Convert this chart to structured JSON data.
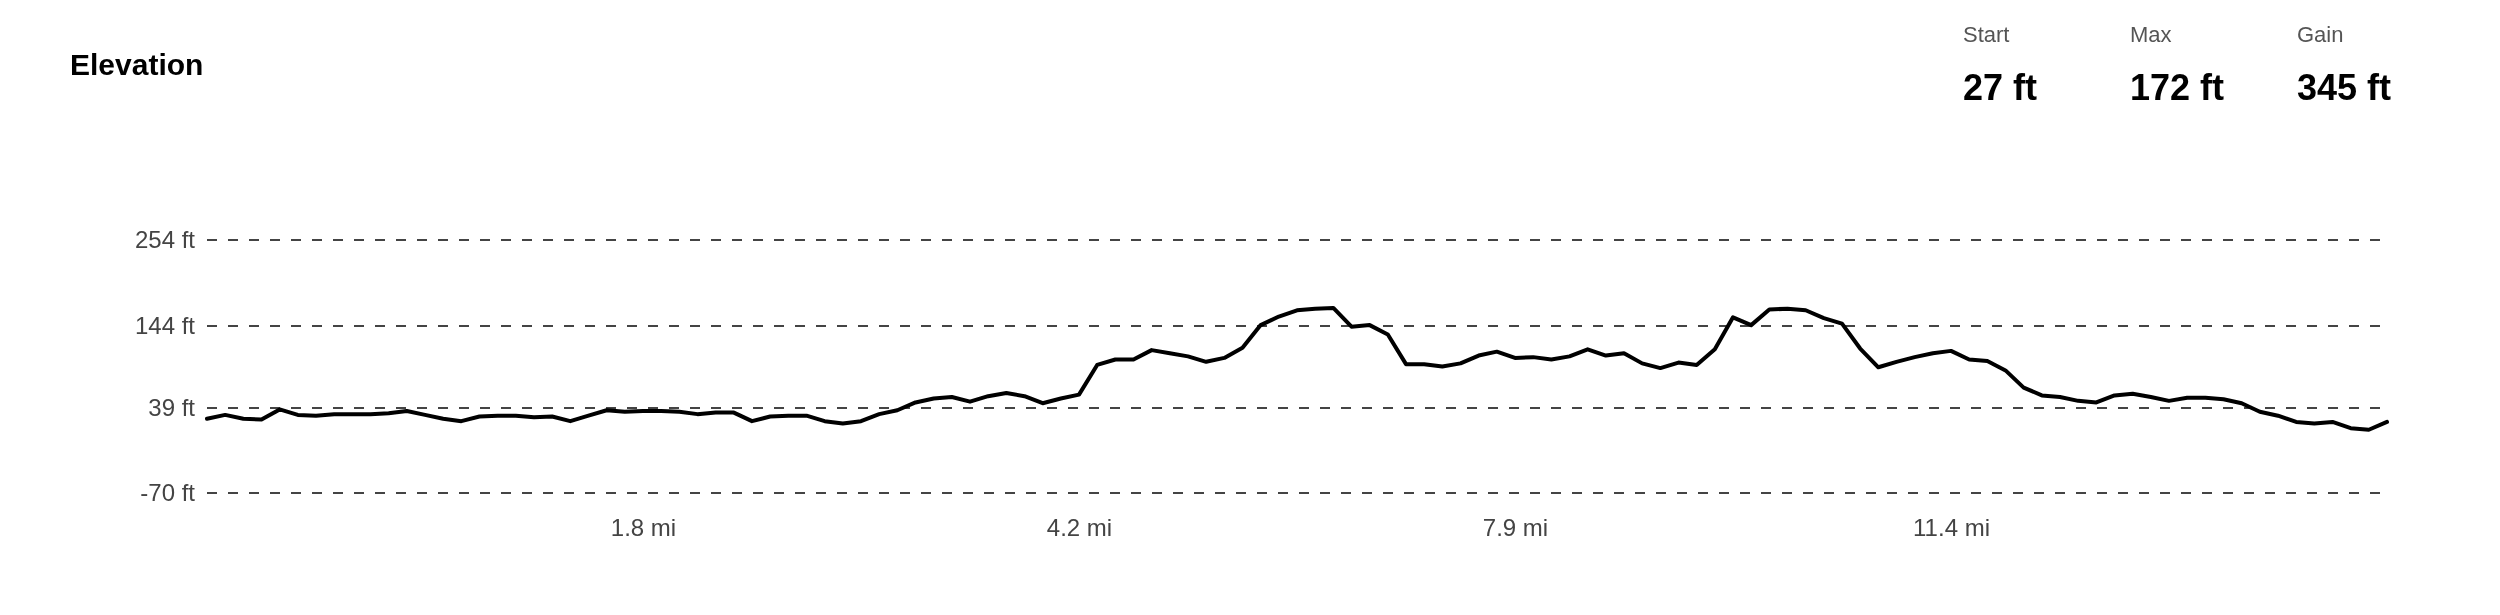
{
  "chart_data": {
    "type": "line",
    "title": "Elevation",
    "annotations": [
      "Start",
      "27 ft",
      "Max",
      "172 ft",
      "Gain",
      "345 ft"
    ],
    "categories": [
      null,
      null,
      null,
      null,
      null,
      null,
      null,
      null,
      null,
      null,
      null,
      null,
      null,
      null,
      null,
      null,
      null,
      null,
      null,
      null,
      null,
      null,
      null,
      null,
      "1.8 mi",
      null,
      null,
      null,
      null,
      null,
      null,
      null,
      null,
      null,
      null,
      null,
      null,
      null,
      null,
      null,
      null,
      null,
      null,
      null,
      null,
      null,
      null,
      null,
      "4.2 mi",
      null,
      null,
      null,
      null,
      null,
      null,
      null,
      null,
      null,
      null,
      null,
      null,
      null,
      null,
      null,
      null,
      null,
      null,
      null,
      null,
      null,
      null,
      null,
      "7.9 mi",
      null,
      null,
      null,
      null,
      null,
      null,
      null,
      null,
      null,
      null,
      null,
      null,
      null,
      null,
      null,
      null,
      null,
      null,
      null,
      null,
      null,
      null,
      null,
      "11.4 mi",
      null,
      null,
      null,
      null,
      null,
      null,
      null,
      null,
      null,
      null,
      null,
      null,
      null,
      null,
      null,
      null,
      null,
      null,
      null,
      null,
      null,
      null,
      null,
      null
    ],
    "series": [
      {
        "color": "#000000",
        "values": [
          25,
          30,
          25,
          24,
          37,
          30,
          29,
          31,
          31,
          31,
          32,
          35,
          30,
          25,
          22,
          28,
          29,
          29,
          27,
          28,
          22,
          29,
          36,
          34,
          35,
          35,
          34,
          31,
          33,
          33,
          22,
          28,
          29,
          29,
          22,
          19,
          22,
          31,
          36,
          46,
          51,
          53,
          47,
          54,
          58,
          54,
          45,
          51,
          56,
          94,
          101,
          101,
          113,
          109,
          105,
          98,
          103,
          116,
          145,
          156,
          164,
          166,
          167,
          143,
          145,
          133,
          95,
          95,
          92,
          96,
          106,
          111,
          103,
          104,
          101,
          105,
          114,
          106,
          109,
          96,
          90,
          97,
          94,
          114,
          155,
          145,
          165,
          166,
          164,
          154,
          147,
          115,
          91,
          98,
          104,
          109,
          112,
          101,
          99,
          87,
          65,
          55,
          53,
          48,
          46,
          55,
          57,
          53,
          48,
          52,
          52,
          50,
          45,
          34,
          29,
          21,
          19,
          21,
          13,
          11,
          21
        ]
      }
    ],
    "ylim": [
      -70,
      254
    ],
    "yticks": [
      {
        "value": -70,
        "label": "-70 ft"
      },
      {
        "value": 39,
        "label": "39 ft"
      },
      {
        "value": 144,
        "label": "144 ft"
      },
      {
        "value": 254,
        "label": "254 ft"
      }
    ],
    "grid": "y"
  }
}
